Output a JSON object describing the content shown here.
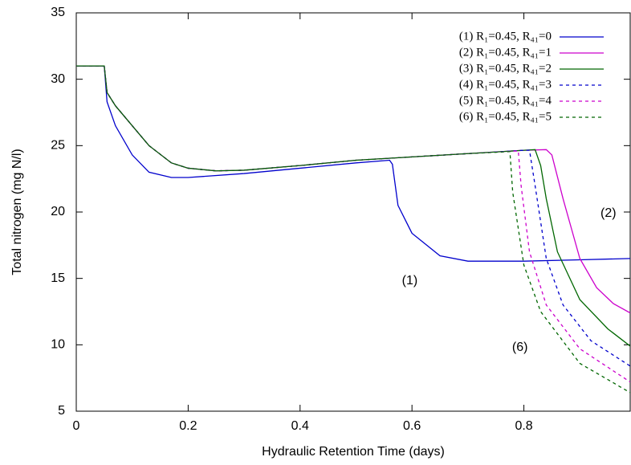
{
  "chart_data": {
    "type": "line",
    "xlabel": "Hydraulic Retention Time (days)",
    "ylabel": "Total nitrogen (mg N/l)",
    "xlim": [
      0,
      0.99
    ],
    "ylim": [
      5,
      35
    ],
    "xticks": [
      0,
      0.2,
      0.4,
      0.6,
      0.8
    ],
    "yticks": [
      5,
      10,
      15,
      20,
      25,
      30,
      35
    ],
    "grid": false,
    "legend": "top right",
    "series": [
      {
        "name": "(1) R₁=0.45, R₄₁=0",
        "color": "#0000cc",
        "dashed": false,
        "x": [
          0,
          0.05,
          0.055,
          0.07,
          0.1,
          0.13,
          0.17,
          0.2,
          0.3,
          0.4,
          0.5,
          0.56,
          0.565,
          0.575,
          0.6,
          0.65,
          0.7,
          0.8,
          0.9,
          0.99
        ],
        "values": [
          31,
          31,
          28.3,
          26.5,
          24.3,
          23,
          22.6,
          22.6,
          22.9,
          23.3,
          23.7,
          23.9,
          23.6,
          20.5,
          18.4,
          16.7,
          16.3,
          16.3,
          16.4,
          16.5
        ]
      },
      {
        "name": "(2) R₁=0.45, R₄₁=1",
        "color": "#cc00cc",
        "dashed": false,
        "x": [
          0,
          0.05,
          0.055,
          0.07,
          0.1,
          0.13,
          0.17,
          0.2,
          0.25,
          0.3,
          0.4,
          0.5,
          0.6,
          0.7,
          0.8,
          0.84,
          0.85,
          0.87,
          0.9,
          0.93,
          0.96,
          0.99
        ],
        "values": [
          31,
          31,
          29,
          28,
          26.5,
          25,
          23.7,
          23.3,
          23.1,
          23.15,
          23.5,
          23.9,
          24.15,
          24.4,
          24.65,
          24.7,
          24.3,
          21,
          16.5,
          14.3,
          13.1,
          12.4
        ]
      },
      {
        "name": "(3) R₁=0.45, R₄₁=2",
        "color": "#006600",
        "dashed": false,
        "x": [
          0,
          0.05,
          0.055,
          0.07,
          0.1,
          0.13,
          0.17,
          0.2,
          0.25,
          0.3,
          0.4,
          0.5,
          0.6,
          0.7,
          0.8,
          0.82,
          0.83,
          0.84,
          0.86,
          0.9,
          0.95,
          0.99
        ],
        "values": [
          31,
          31,
          29,
          28,
          26.5,
          25,
          23.7,
          23.3,
          23.1,
          23.15,
          23.5,
          23.9,
          24.15,
          24.4,
          24.65,
          24.7,
          23.5,
          21,
          17,
          13.4,
          11.2,
          9.9
        ]
      },
      {
        "name": "(4) R₁=0.45, R₄₁=3",
        "color": "#0000cc",
        "dashed": true,
        "x": [
          0,
          0.05,
          0.055,
          0.07,
          0.1,
          0.13,
          0.17,
          0.2,
          0.25,
          0.3,
          0.4,
          0.5,
          0.6,
          0.7,
          0.8,
          0.81,
          0.82,
          0.84,
          0.87,
          0.92,
          0.99
        ],
        "values": [
          31,
          31,
          29,
          28,
          26.5,
          25,
          23.7,
          23.3,
          23.1,
          23.15,
          23.5,
          23.9,
          24.15,
          24.4,
          24.65,
          24.65,
          22,
          16.5,
          13,
          10.3,
          8.4
        ]
      },
      {
        "name": "(5) R₁=0.45, R₄₁=4",
        "color": "#cc00cc",
        "dashed": true,
        "x": [
          0,
          0.05,
          0.055,
          0.07,
          0.1,
          0.13,
          0.17,
          0.2,
          0.25,
          0.3,
          0.4,
          0.5,
          0.6,
          0.7,
          0.79,
          0.795,
          0.81,
          0.84,
          0.9,
          0.99
        ],
        "values": [
          31,
          31,
          29,
          28,
          26.5,
          25,
          23.7,
          23.3,
          23.1,
          23.15,
          23.5,
          23.9,
          24.15,
          24.4,
          24.6,
          22,
          17,
          13,
          9.7,
          7.2
        ]
      },
      {
        "name": "(6) R₁=0.45, R₄₁=5",
        "color": "#006600",
        "dashed": true,
        "x": [
          0,
          0.05,
          0.055,
          0.07,
          0.1,
          0.13,
          0.17,
          0.2,
          0.25,
          0.3,
          0.4,
          0.5,
          0.6,
          0.7,
          0.775,
          0.78,
          0.8,
          0.83,
          0.9,
          0.99
        ],
        "values": [
          31,
          31,
          29,
          28,
          26.5,
          25,
          23.7,
          23.3,
          23.1,
          23.15,
          23.5,
          23.9,
          24.15,
          24.4,
          24.55,
          21.5,
          16,
          12.5,
          8.6,
          6.4
        ]
      }
    ],
    "annotations": [
      {
        "text": "(1)",
        "x": 0.596,
        "y": 14.8
      },
      {
        "text": "(2)",
        "x": 0.951,
        "y": 19.9
      },
      {
        "text": "(6)",
        "x": 0.793,
        "y": 9.8
      }
    ]
  }
}
